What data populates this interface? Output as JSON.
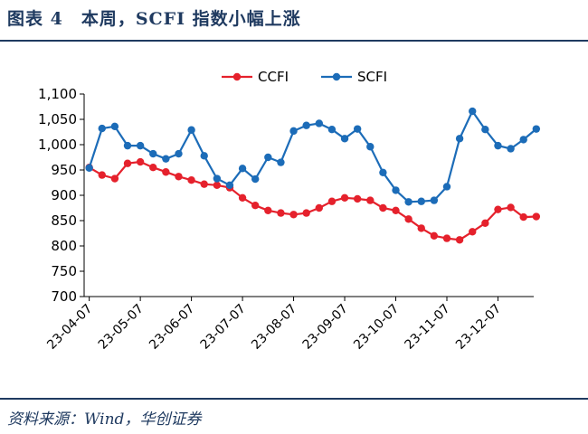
{
  "header": {
    "title": "图表 4　本周，SCFI 指数小幅上涨"
  },
  "footer": {
    "source": "资料来源：Wind，华创证券"
  },
  "chart_data": {
    "type": "line",
    "title": "",
    "xlabel": "",
    "ylabel": "",
    "ylim": [
      700,
      1100
    ],
    "yticks": [
      700,
      750,
      800,
      850,
      900,
      950,
      1000,
      1050,
      1100
    ],
    "ytick_labels": [
      "700",
      "750",
      "800",
      "850",
      "900",
      "950",
      "1,000",
      "1,050",
      "1,100"
    ],
    "x_tick_labels": [
      "23-04-07",
      "23-05-07",
      "23-06-07",
      "23-07-07",
      "23-08-07",
      "23-09-07",
      "23-10-07",
      "23-11-07",
      "23-12-07"
    ],
    "x_tick_index": [
      0,
      4,
      8,
      12,
      16,
      20,
      24,
      28,
      32
    ],
    "legend_position": "top",
    "grid": false,
    "series": [
      {
        "name": "CCFI",
        "color": "#e5212c",
        "values": [
          955,
          940,
          933,
          963,
          966,
          955,
          946,
          937,
          930,
          922,
          920,
          915,
          895,
          880,
          870,
          865,
          862,
          865,
          875,
          888,
          895,
          893,
          890,
          875,
          870,
          853,
          835,
          820,
          815,
          812,
          828,
          845,
          872,
          876,
          857,
          858
        ]
      },
      {
        "name": "SCFI",
        "color": "#1c6cb8",
        "values": [
          954,
          1032,
          1036,
          998,
          998,
          982,
          972,
          982,
          1029,
          978,
          933,
          920,
          953,
          932,
          975,
          965,
          1027,
          1038,
          1042,
          1030,
          1012,
          1031,
          996,
          945,
          910,
          887,
          888,
          890,
          917,
          1012,
          1066,
          1030,
          998,
          992,
          1010,
          1031
        ]
      }
    ]
  }
}
